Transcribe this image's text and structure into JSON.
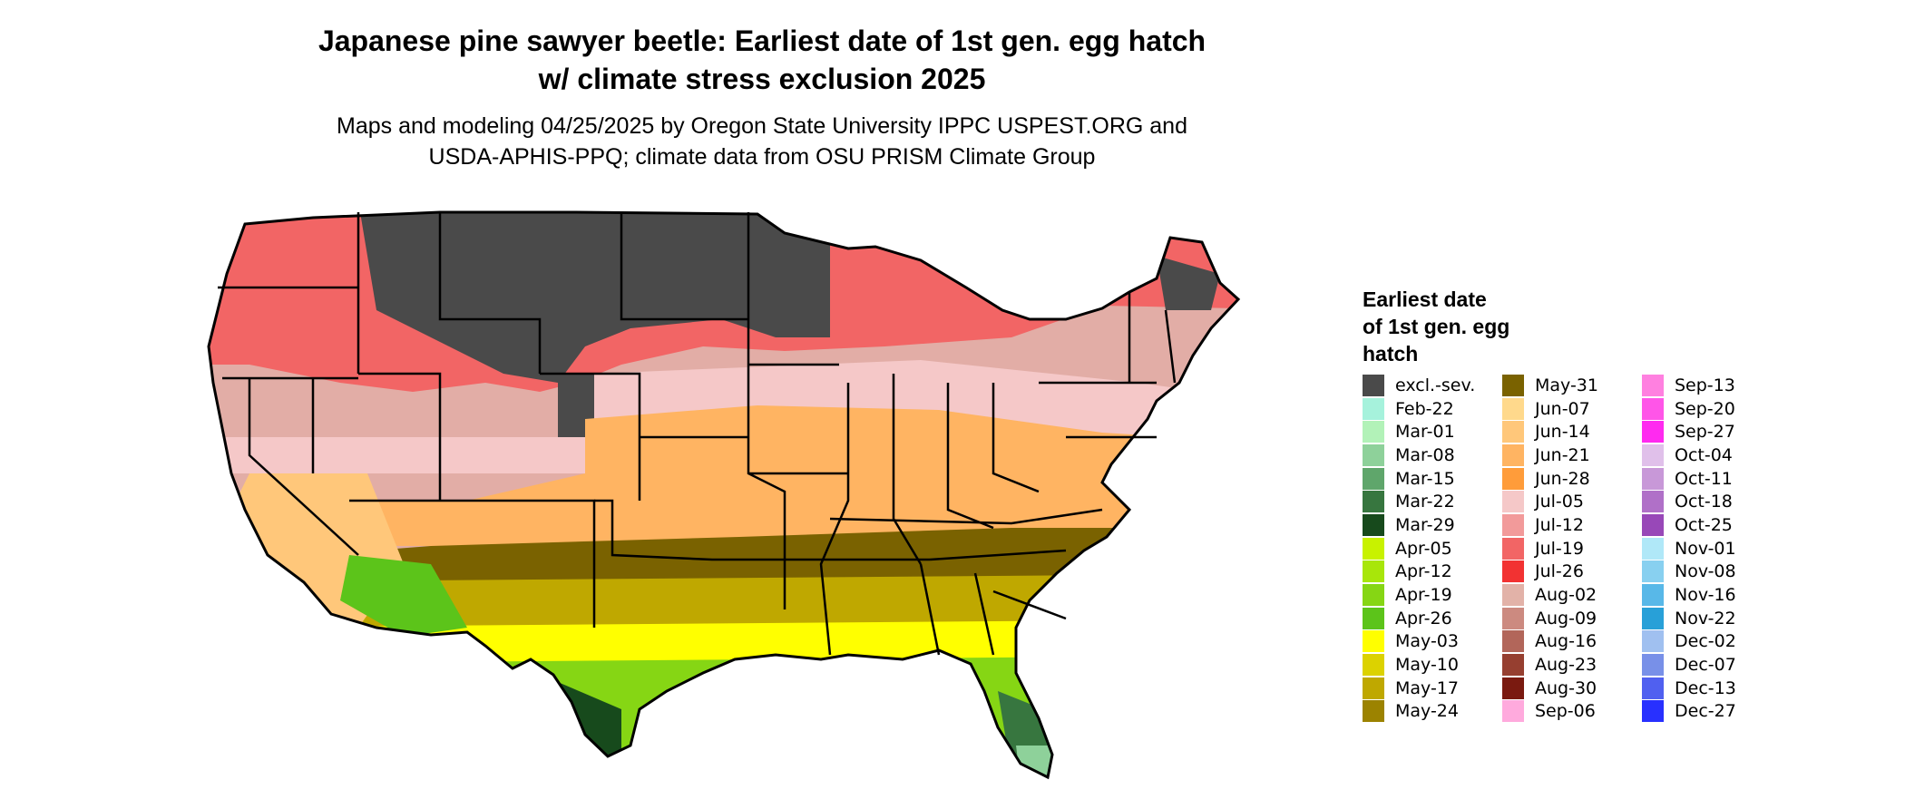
{
  "header": {
    "title_line1": "Japanese pine sawyer beetle: Earliest date of 1st gen. egg hatch",
    "title_line2": "w/ climate stress exclusion 2025",
    "subtitle_line1": "Maps and modeling 04/25/2025 by Oregon State University IPPC USPEST.ORG and",
    "subtitle_line2": "USDA-APHIS-PPQ; climate data from OSU PRISM Climate Group"
  },
  "legend": {
    "title_line1": "Earliest date",
    "title_line2": "of 1st gen. egg",
    "title_line3": "hatch",
    "columns": [
      [
        {
          "label": "excl.-sev.",
          "color": "#4a4a4a"
        },
        {
          "label": "Feb-22",
          "color": "#a6f2dc"
        },
        {
          "label": "Mar-01",
          "color": "#b2f2b8"
        },
        {
          "label": "Mar-08",
          "color": "#8ed19a"
        },
        {
          "label": "Mar-15",
          "color": "#5fa66b"
        },
        {
          "label": "Mar-22",
          "color": "#37763f"
        },
        {
          "label": "Mar-29",
          "color": "#174a1c"
        },
        {
          "label": "Apr-05",
          "color": "#c8f200"
        },
        {
          "label": "Apr-12",
          "color": "#a8e60a"
        },
        {
          "label": "Apr-19",
          "color": "#86d614"
        },
        {
          "label": "Apr-26",
          "color": "#5cc41a"
        },
        {
          "label": "May-03",
          "color": "#ffff00"
        },
        {
          "label": "May-10",
          "color": "#dcd200"
        },
        {
          "label": "May-17",
          "color": "#bfa800"
        },
        {
          "label": "May-24",
          "color": "#9c8300"
        }
      ],
      [
        {
          "label": "May-31",
          "color": "#7a6200"
        },
        {
          "label": "Jun-07",
          "color": "#ffd98c"
        },
        {
          "label": "Jun-14",
          "color": "#ffc77a"
        },
        {
          "label": "Jun-21",
          "color": "#ffb462"
        },
        {
          "label": "Jun-28",
          "color": "#ff9c3a"
        },
        {
          "label": "Jul-05",
          "color": "#f5c8c8"
        },
        {
          "label": "Jul-12",
          "color": "#f29a9a"
        },
        {
          "label": "Jul-19",
          "color": "#f26565"
        },
        {
          "label": "Jul-26",
          "color": "#f23232"
        },
        {
          "label": "Aug-02",
          "color": "#e2b2a8"
        },
        {
          "label": "Aug-09",
          "color": "#cc8a80"
        },
        {
          "label": "Aug-16",
          "color": "#b2665a"
        },
        {
          "label": "Aug-23",
          "color": "#963f30"
        },
        {
          "label": "Aug-30",
          "color": "#7a1a10"
        },
        {
          "label": "Sep-06",
          "color": "#ffaadd"
        }
      ],
      [
        {
          "label": "Sep-13",
          "color": "#ff80e0"
        },
        {
          "label": "Sep-20",
          "color": "#ff55e8"
        },
        {
          "label": "Sep-27",
          "color": "#ff2af0"
        },
        {
          "label": "Oct-04",
          "color": "#e0c0ea"
        },
        {
          "label": "Oct-11",
          "color": "#c898d8"
        },
        {
          "label": "Oct-18",
          "color": "#b070c8"
        },
        {
          "label": "Oct-25",
          "color": "#9848b8"
        },
        {
          "label": "Nov-01",
          "color": "#b0e8f8"
        },
        {
          "label": "Nov-08",
          "color": "#88d0f0"
        },
        {
          "label": "Nov-16",
          "color": "#58b8e8"
        },
        {
          "label": "Nov-22",
          "color": "#28a0d8"
        },
        {
          "label": "Dec-02",
          "color": "#a0c0f0"
        },
        {
          "label": "Dec-07",
          "color": "#7890e8"
        },
        {
          "label": "Dec-13",
          "color": "#5060f0"
        },
        {
          "label": "Dec-27",
          "color": "#2830ff"
        }
      ]
    ]
  }
}
